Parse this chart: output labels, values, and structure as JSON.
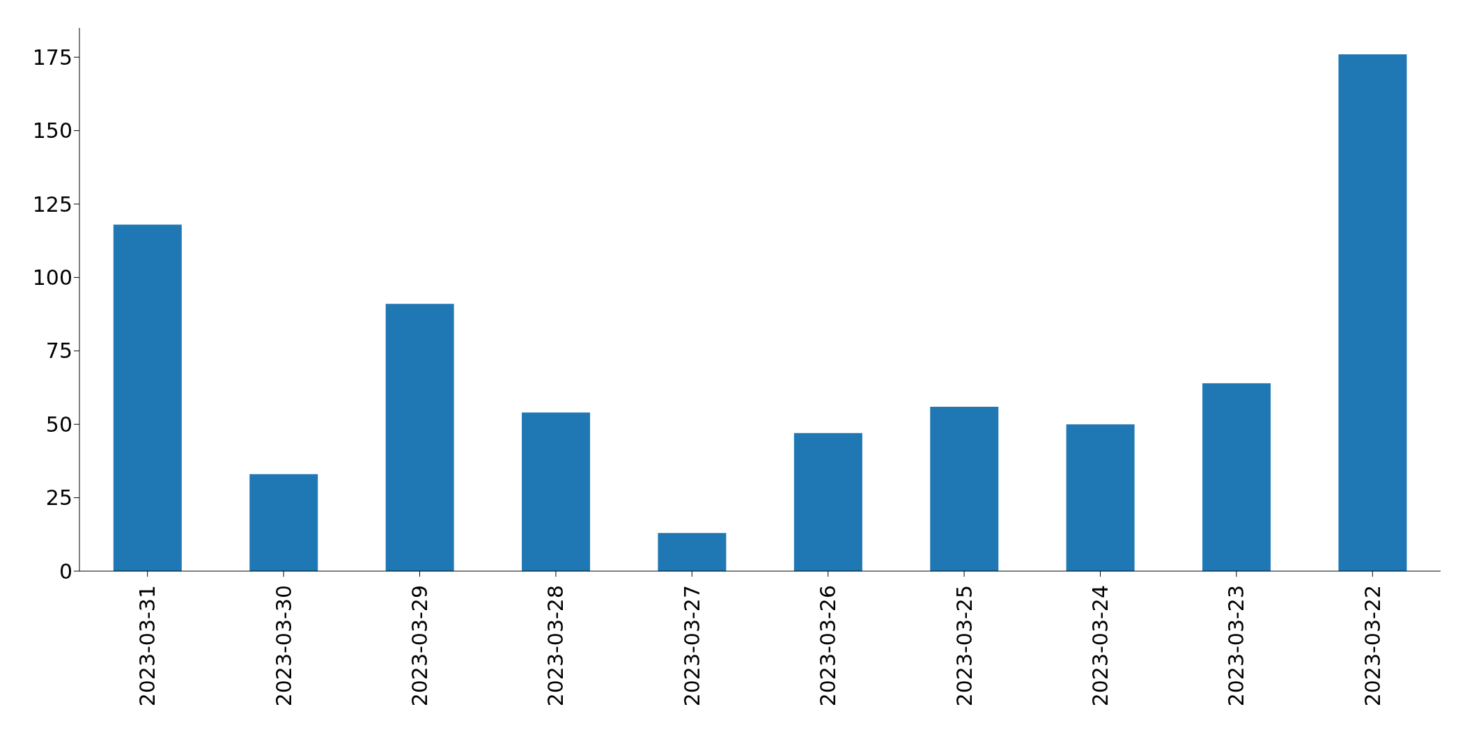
{
  "chart_data": {
    "type": "bar",
    "categories": [
      "2023-03-31",
      "2023-03-30",
      "2023-03-29",
      "2023-03-28",
      "2023-03-27",
      "2023-03-26",
      "2023-03-25",
      "2023-03-24",
      "2023-03-23",
      "2023-03-22"
    ],
    "values": [
      118,
      33,
      91,
      54,
      13,
      47,
      56,
      50,
      64,
      176
    ],
    "color": "#1f77b4",
    "ylim": [
      0,
      185
    ],
    "yticks": [
      0,
      25,
      50,
      75,
      100,
      125,
      150,
      175
    ],
    "grid": false,
    "legend": false
  }
}
